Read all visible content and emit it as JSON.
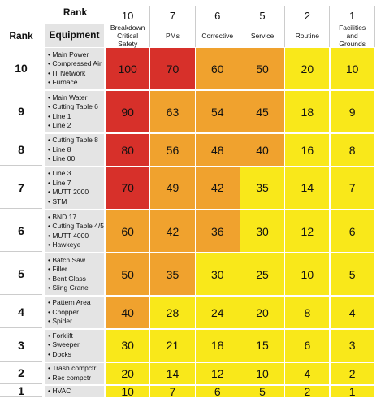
{
  "header": {
    "top_rank_label": "Rank",
    "rank_label": "Rank",
    "equipment_label": "Equipment"
  },
  "columns": [
    {
      "rank": 10,
      "name": "Breakdown Critical Safety"
    },
    {
      "rank": 7,
      "name": "PMs"
    },
    {
      "rank": 6,
      "name": "Corrective"
    },
    {
      "rank": 5,
      "name": "Service"
    },
    {
      "rank": 2,
      "name": "Routine"
    },
    {
      "rank": 1,
      "name": "Facilities and Grounds"
    }
  ],
  "rows": [
    {
      "rank": 10,
      "equipment": [
        "Main Power",
        "Compressed Air",
        "IT Network",
        "Furnace"
      ],
      "values": [
        100,
        70,
        60,
        50,
        20,
        10
      ],
      "colors": [
        "#d7302a",
        "#d7302a",
        "#f0a22e",
        "#f0a22e",
        "#f9e81a",
        "#f9e81a"
      ]
    },
    {
      "rank": 9,
      "equipment": [
        "Main Water",
        "Cutting Table 6",
        "Line 1",
        "Line 2"
      ],
      "values": [
        90,
        63,
        54,
        45,
        18,
        9
      ],
      "colors": [
        "#d7302a",
        "#f0a22e",
        "#f0a22e",
        "#f0a22e",
        "#f9e81a",
        "#f9e81a"
      ]
    },
    {
      "rank": 8,
      "equipment": [
        "Cutting Table 8",
        "Line 8",
        "Line 00"
      ],
      "values": [
        80,
        56,
        48,
        40,
        16,
        8
      ],
      "colors": [
        "#d7302a",
        "#f0a22e",
        "#f0a22e",
        "#f0a22e",
        "#f9e81a",
        "#f9e81a"
      ]
    },
    {
      "rank": 7,
      "equipment": [
        "Line 3",
        "Line 7",
        "MUTT 2000",
        "STM"
      ],
      "values": [
        70,
        49,
        42,
        35,
        14,
        7
      ],
      "colors": [
        "#d7302a",
        "#f0a22e",
        "#f0a22e",
        "#f9e81a",
        "#f9e81a",
        "#f9e81a"
      ]
    },
    {
      "rank": 6,
      "equipment": [
        "BND 17",
        "Cutting Table 4/5",
        "MUTT 4000",
        "Hawkeye"
      ],
      "values": [
        60,
        42,
        36,
        30,
        12,
        6
      ],
      "colors": [
        "#f0a22e",
        "#f0a22e",
        "#f0a22e",
        "#f9e81a",
        "#f9e81a",
        "#f9e81a"
      ]
    },
    {
      "rank": 5,
      "equipment": [
        "Batch Saw",
        "Filler",
        "Bent Glass",
        "Sling Crane"
      ],
      "values": [
        50,
        35,
        30,
        25,
        10,
        5
      ],
      "colors": [
        "#f0a22e",
        "#f0a22e",
        "#f9e81a",
        "#f9e81a",
        "#f9e81a",
        "#f9e81a"
      ]
    },
    {
      "rank": 4,
      "equipment": [
        "Pattern Area",
        "Chopper",
        "Spider"
      ],
      "values": [
        40,
        28,
        24,
        20,
        8,
        4
      ],
      "colors": [
        "#f0a22e",
        "#f9e81a",
        "#f9e81a",
        "#f9e81a",
        "#f9e81a",
        "#f9e81a"
      ]
    },
    {
      "rank": 3,
      "equipment": [
        "Forklift",
        "Sweeper",
        "Docks"
      ],
      "values": [
        30,
        21,
        18,
        15,
        6,
        3
      ],
      "colors": [
        "#f9e81a",
        "#f9e81a",
        "#f9e81a",
        "#f9e81a",
        "#f9e81a",
        "#f9e81a"
      ]
    },
    {
      "rank": 2,
      "equipment": [
        "Trash compctr",
        "Rec compctr"
      ],
      "values": [
        20,
        14,
        12,
        10,
        4,
        2
      ],
      "colors": [
        "#f9e81a",
        "#f9e81a",
        "#f9e81a",
        "#f9e81a",
        "#f9e81a",
        "#f9e81a"
      ]
    },
    {
      "rank": 1,
      "equipment": [
        "HVAC"
      ],
      "values": [
        10,
        7,
        6,
        5,
        2,
        1
      ],
      "colors": [
        "#f9e81a",
        "#f9e81a",
        "#f9e81a",
        "#f9e81a",
        "#f9e81a",
        "#f9e81a"
      ]
    }
  ]
}
